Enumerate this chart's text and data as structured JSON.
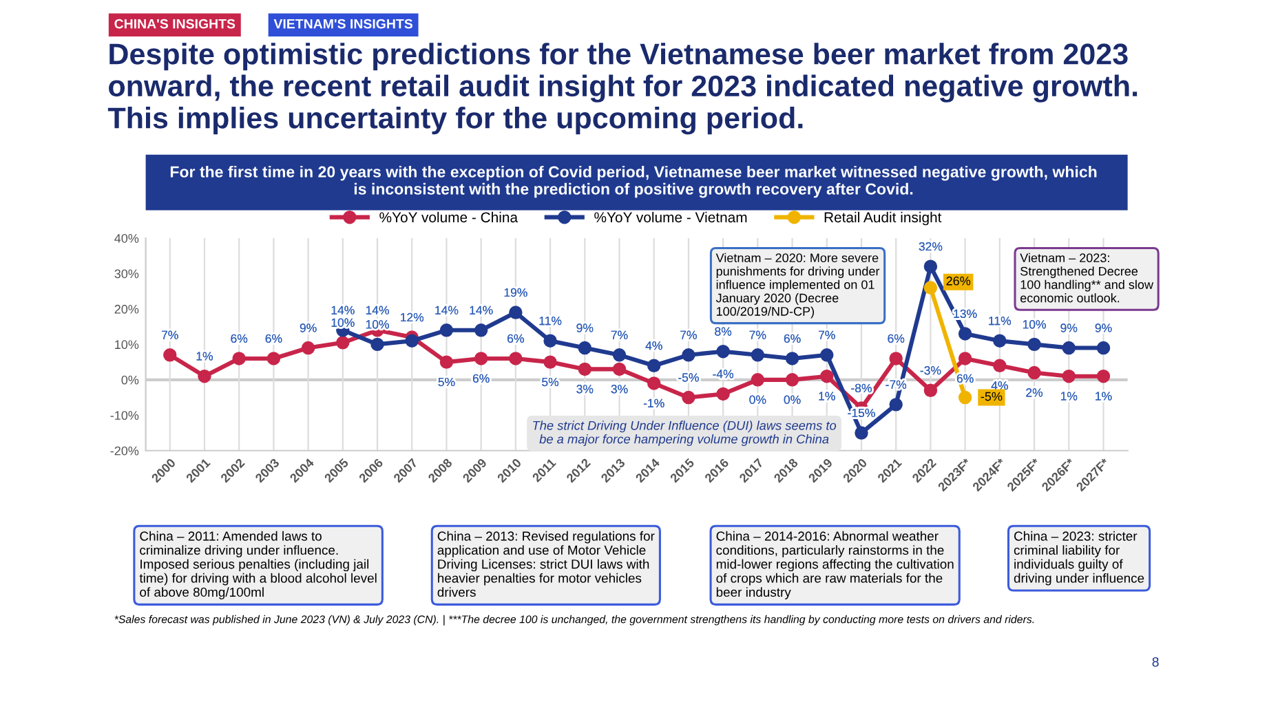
{
  "chart_data": {
    "type": "line",
    "title": "Despite optimistic predictions for the Vietnamese beer market from 2023 onward, the recent retail audit insight for 2023 indicated negative growth. This implies uncertainty for the upcoming period.",
    "subtitle": "For the first time in 20 years with the exception of Covid period, Vietnamese beer market witnessed negative growth, which is inconsistent with the prediction of positive growth recovery after Covid.",
    "categories": [
      "2000",
      "2001",
      "2002",
      "2003",
      "2004",
      "2005",
      "2006",
      "2007",
      "2008",
      "2009",
      "2010",
      "2011",
      "2012",
      "2013",
      "2014",
      "2015",
      "2016",
      "2017",
      "2018",
      "2019",
      "2020",
      "2021",
      "2022",
      "2023F*",
      "2024F*",
      "2025F*",
      "2026F*",
      "2027F*"
    ],
    "series": [
      {
        "name": "%YoY volume - China",
        "color": "#c8254a",
        "values": [
          7,
          1,
          6,
          6,
          9,
          10.5,
          14,
          12,
          5,
          6,
          6,
          5,
          3,
          3,
          -1,
          -5,
          -4,
          0,
          0,
          1,
          -8,
          6,
          -3,
          6,
          4,
          2,
          1,
          1
        ],
        "value_labels": [
          "7%",
          "1%",
          "6%",
          "6%",
          "9%",
          "10%",
          "14%",
          "12%",
          "5%",
          "6%",
          "6%",
          "5%",
          "3%",
          "3%",
          "-1%",
          "-5%",
          "-4%",
          "0%",
          "0%",
          "1%",
          "-8%",
          "6%",
          "-3%",
          "6%",
          "4%",
          "2%",
          "1%",
          "1%"
        ]
      },
      {
        "name": "%YoY volume - Vietnam",
        "color": "#1f3a8f",
        "values": [
          null,
          null,
          null,
          null,
          null,
          14,
          10,
          11,
          14,
          14,
          19,
          11,
          9,
          7,
          4,
          7,
          8,
          7,
          6,
          7,
          -15,
          -7,
          32,
          13,
          11,
          10,
          9,
          9
        ],
        "value_labels": [
          null,
          null,
          null,
          null,
          null,
          "14%",
          "10%",
          null,
          "14%",
          "14%",
          "19%",
          "11%",
          "9%",
          "7%",
          "4%",
          "7%",
          "8%",
          "7%",
          "6%",
          "7%",
          "-15%",
          "-7%",
          "32%",
          "13%",
          "11%",
          "10%",
          "9%",
          "9%"
        ]
      },
      {
        "name": "Retail Audit insight",
        "color": "#f0b400",
        "values": [
          null,
          null,
          null,
          null,
          null,
          null,
          null,
          null,
          null,
          null,
          null,
          null,
          null,
          null,
          null,
          null,
          null,
          null,
          null,
          null,
          null,
          null,
          26,
          -5,
          null,
          null,
          null,
          null
        ],
        "value_labels": [
          null,
          null,
          null,
          null,
          null,
          null,
          null,
          null,
          null,
          null,
          null,
          null,
          null,
          null,
          null,
          null,
          null,
          null,
          null,
          null,
          null,
          null,
          "26%",
          "-5%",
          null,
          null,
          null,
          null
        ]
      }
    ],
    "ylim": [
      -20,
      40
    ],
    "yticks": [
      {
        "value": -20,
        "label": "-20%"
      },
      {
        "value": -10,
        "label": "-10%"
      },
      {
        "value": 0,
        "label": "0%"
      },
      {
        "value": 10,
        "label": "10%"
      },
      {
        "value": 20,
        "label": "20%"
      },
      {
        "value": 30,
        "label": "30%"
      },
      {
        "value": 40,
        "label": "40%"
      }
    ],
    "grid": "x",
    "legend": "top",
    "marker": "circle",
    "line_style": "solid",
    "annotations": [
      "CHINA'S INSIGHTS",
      "VIETNAM'S INSIGHTS",
      "Vietnam – 2020: More severe punishments for driving under influence implemented on 01 January 2020 (Decree 100/2019/ND-CP)",
      "Vietnam – 2023: Strengthened Decree 100 handling** and slow economic outlook.",
      "The strict Driving Under Influence (DUI) laws seems to be a major force hampering volume growth in China",
      "China – 2011: Amended laws to criminalize driving under influence. Imposed serious penalties (including jail time) for driving with a blood alcohol level of above 80mg/100ml",
      "China – 2013: Revised regulations for application and use of Motor Vehicle Driving Licenses: strict DUI laws with heavier penalties for motor vehicles drivers",
      "China – 2014-2016: Abnormal weather conditions, particularly rainstorms in the mid-lower regions affecting the cultivation of crops which are raw materials for the beer industry",
      "China – 2023: stricter criminal liability for individuals guilty of driving under influence",
      "*Sales forecast was published in June 2023 (VN) & July 2023 (CN). | ***The decree 100 is unchanged, the government strengthens its handling by conducting more tests on drivers and riders.",
      "8"
    ]
  }
}
